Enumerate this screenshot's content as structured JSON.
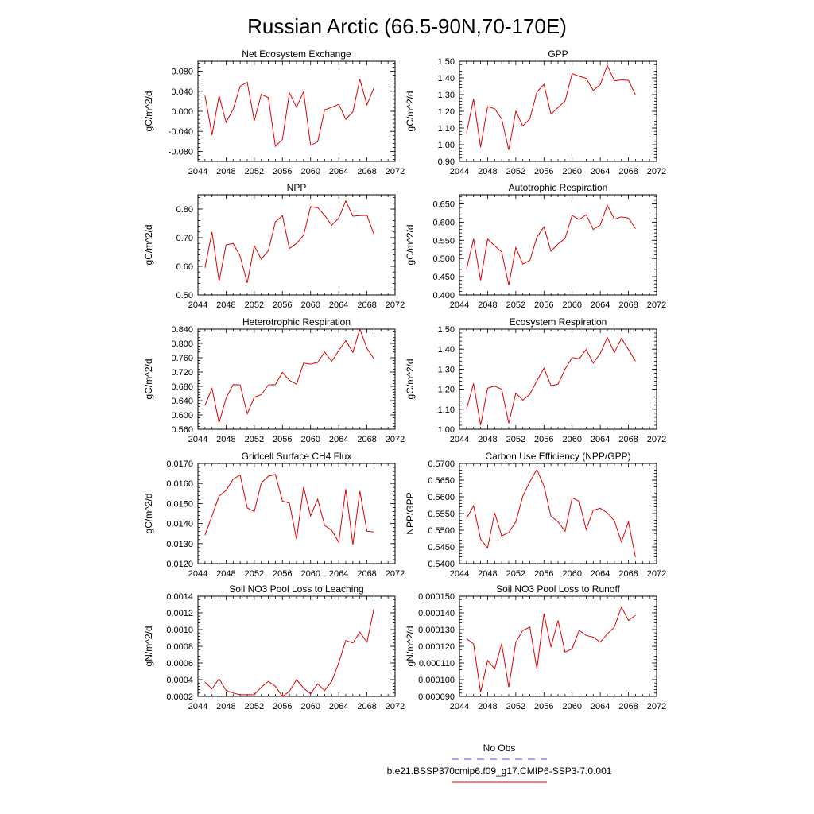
{
  "figure": {
    "title": "Russian Arctic (66.5-90N,70-170E)"
  },
  "legend": {
    "obs_label": "No Obs",
    "obs_color": "#4a4aff",
    "model_label": "b.e21.BSSP370cmip6.f09_g17.CMIP6-SSP3-7.0.001",
    "model_color": "#e00000"
  },
  "chart_data": [
    {
      "type": "line",
      "title": "Net Ecosystem Exchange",
      "ylabel": "gC/m^2/d",
      "xlim": [
        2044,
        2072
      ],
      "xticks": [
        "2044",
        "2048",
        "2052",
        "2056",
        "2060",
        "2064",
        "2068",
        "2072"
      ],
      "ylim": [
        -0.1,
        0.1
      ],
      "yticks": [
        "-0.080",
        "-0.040",
        "0.000",
        "0.040",
        "0.080"
      ],
      "series": [
        {
          "x": [
            2045,
            2046,
            2047,
            2048,
            2049,
            2050,
            2051,
            2052,
            2053,
            2054,
            2055,
            2056,
            2057,
            2058,
            2059,
            2060,
            2061,
            2062,
            2063,
            2064,
            2065,
            2066,
            2067,
            2068,
            2069
          ],
          "values": [
            0.031,
            -0.047,
            0.031,
            -0.022,
            0.004,
            0.05,
            0.058,
            -0.019,
            0.034,
            0.027,
            -0.07,
            -0.056,
            0.037,
            0.008,
            0.039,
            -0.068,
            -0.061,
            0.003,
            0.008,
            0.014,
            -0.016,
            -0.001,
            0.064,
            0.013,
            0.047
          ]
        }
      ]
    },
    {
      "type": "line",
      "title": "GPP",
      "ylabel": "gC/m^2/d",
      "xlim": [
        2044,
        2072
      ],
      "xticks": [
        "2044",
        "2048",
        "2052",
        "2056",
        "2060",
        "2064",
        "2068",
        "2072"
      ],
      "ylim": [
        0.9,
        1.5
      ],
      "yticks": [
        "0.90",
        "1.00",
        "1.10",
        "1.20",
        "1.30",
        "1.40",
        "1.50"
      ],
      "series": [
        {
          "x": [
            2045,
            2046,
            2047,
            2048,
            2049,
            2050,
            2051,
            2052,
            2053,
            2054,
            2055,
            2056,
            2057,
            2058,
            2059,
            2060,
            2061,
            2062,
            2063,
            2064,
            2065,
            2066,
            2067,
            2068,
            2069
          ],
          "values": [
            1.07,
            1.275,
            0.985,
            1.228,
            1.215,
            1.155,
            0.968,
            1.2,
            1.112,
            1.155,
            1.315,
            1.362,
            1.183,
            1.223,
            1.262,
            1.425,
            1.41,
            1.397,
            1.325,
            1.36,
            1.475,
            1.382,
            1.388,
            1.385,
            1.298
          ]
        }
      ]
    },
    {
      "type": "line",
      "title": "NPP",
      "ylabel": "gC/m^2/d",
      "xlim": [
        2044,
        2072
      ],
      "xticks": [
        "2044",
        "2048",
        "2052",
        "2056",
        "2060",
        "2064",
        "2068",
        "2072"
      ],
      "ylim": [
        0.5,
        0.85
      ],
      "yticks": [
        "0.50",
        "0.60",
        "0.70",
        "0.80"
      ],
      "series": [
        {
          "x": [
            2045,
            2046,
            2047,
            2048,
            2049,
            2050,
            2051,
            2052,
            2053,
            2054,
            2055,
            2056,
            2057,
            2058,
            2059,
            2060,
            2061,
            2062,
            2063,
            2064,
            2065,
            2066,
            2067,
            2068,
            2069
          ],
          "values": [
            0.595,
            0.72,
            0.547,
            0.675,
            0.68,
            0.635,
            0.542,
            0.672,
            0.625,
            0.655,
            0.755,
            0.777,
            0.662,
            0.68,
            0.708,
            0.808,
            0.805,
            0.778,
            0.744,
            0.768,
            0.828,
            0.775,
            0.777,
            0.778,
            0.712
          ]
        }
      ]
    },
    {
      "type": "line",
      "title": "Autotrophic Respiration",
      "ylabel": "gC/m^2/d",
      "xlim": [
        2044,
        2072
      ],
      "xticks": [
        "2044",
        "2048",
        "2052",
        "2056",
        "2060",
        "2064",
        "2068",
        "2072"
      ],
      "ylim": [
        0.4,
        0.675
      ],
      "yticks": [
        "0.400",
        "0.450",
        "0.500",
        "0.550",
        "0.600",
        "0.650"
      ],
      "series": [
        {
          "x": [
            2045,
            2046,
            2047,
            2048,
            2049,
            2050,
            2051,
            2052,
            2053,
            2054,
            2055,
            2056,
            2057,
            2058,
            2059,
            2060,
            2061,
            2062,
            2063,
            2064,
            2065,
            2066,
            2067,
            2068,
            2069
          ],
          "values": [
            0.47,
            0.554,
            0.44,
            0.553,
            0.535,
            0.518,
            0.427,
            0.53,
            0.485,
            0.495,
            0.558,
            0.587,
            0.52,
            0.54,
            0.555,
            0.618,
            0.607,
            0.62,
            0.58,
            0.592,
            0.646,
            0.608,
            0.614,
            0.611,
            0.582
          ]
        }
      ]
    },
    {
      "type": "line",
      "title": "Heterotrophic Respiration",
      "ylabel": "gC/m^2/d",
      "xlim": [
        2044,
        2072
      ],
      "xticks": [
        "2044",
        "2048",
        "2052",
        "2056",
        "2060",
        "2064",
        "2068",
        "2072"
      ],
      "ylim": [
        0.56,
        0.84
      ],
      "yticks": [
        "0.560",
        "0.600",
        "0.640",
        "0.680",
        "0.720",
        "0.760",
        "0.800",
        "0.840"
      ],
      "series": [
        {
          "x": [
            2045,
            2046,
            2047,
            2048,
            2049,
            2050,
            2051,
            2052,
            2053,
            2054,
            2055,
            2056,
            2057,
            2058,
            2059,
            2060,
            2061,
            2062,
            2063,
            2064,
            2065,
            2066,
            2067,
            2068,
            2069
          ],
          "values": [
            0.627,
            0.674,
            0.578,
            0.647,
            0.685,
            0.684,
            0.603,
            0.649,
            0.657,
            0.684,
            0.685,
            0.719,
            0.697,
            0.686,
            0.745,
            0.742,
            0.747,
            0.776,
            0.75,
            0.78,
            0.808,
            0.775,
            0.84,
            0.786,
            0.757
          ]
        }
      ]
    },
    {
      "type": "line",
      "title": "Ecosystem Respiration",
      "ylabel": "gC/m^2/d",
      "xlim": [
        2044,
        2072
      ],
      "xticks": [
        "2044",
        "2048",
        "2052",
        "2056",
        "2060",
        "2064",
        "2068",
        "2072"
      ],
      "ylim": [
        1.0,
        1.5
      ],
      "yticks": [
        "1.00",
        "1.10",
        "1.20",
        "1.30",
        "1.40",
        "1.50"
      ],
      "series": [
        {
          "x": [
            2045,
            2046,
            2047,
            2048,
            2049,
            2050,
            2051,
            2052,
            2053,
            2054,
            2055,
            2056,
            2057,
            2058,
            2059,
            2060,
            2061,
            2062,
            2063,
            2064,
            2065,
            2066,
            2067,
            2068,
            2069
          ],
          "values": [
            1.1,
            1.228,
            1.02,
            1.205,
            1.215,
            1.2,
            1.03,
            1.18,
            1.145,
            1.175,
            1.242,
            1.305,
            1.218,
            1.225,
            1.3,
            1.358,
            1.352,
            1.398,
            1.33,
            1.378,
            1.458,
            1.383,
            1.453,
            1.398,
            1.34
          ]
        }
      ]
    },
    {
      "type": "line",
      "title": "Gridcell Surface CH4 Flux",
      "ylabel": "gC/m^2/d",
      "xlim": [
        2044,
        2072
      ],
      "xticks": [
        "2044",
        "2048",
        "2052",
        "2056",
        "2060",
        "2064",
        "2068",
        "2072"
      ],
      "ylim": [
        0.012,
        0.017
      ],
      "yticks": [
        "0.0120",
        "0.0130",
        "0.0140",
        "0.0150",
        "0.0160",
        "0.0170"
      ],
      "series": [
        {
          "x": [
            2045,
            2046,
            2047,
            2048,
            2049,
            2050,
            2051,
            2052,
            2053,
            2054,
            2055,
            2056,
            2057,
            2058,
            2059,
            2060,
            2061,
            2062,
            2063,
            2064,
            2065,
            2066,
            2067,
            2068,
            2069
          ],
          "values": [
            0.01342,
            0.01438,
            0.01537,
            0.01565,
            0.01622,
            0.01642,
            0.01478,
            0.0146,
            0.01603,
            0.01636,
            0.01645,
            0.01512,
            0.01502,
            0.01322,
            0.01582,
            0.01438,
            0.01522,
            0.0139,
            0.01366,
            0.01307,
            0.01572,
            0.01295,
            0.01562,
            0.01362,
            0.01358
          ]
        }
      ]
    },
    {
      "type": "line",
      "title": "Carbon Use Efficiency (NPP/GPP)",
      "ylabel": "NPP/GPP",
      "xlim": [
        2044,
        2072
      ],
      "xticks": [
        "2044",
        "2048",
        "2052",
        "2056",
        "2060",
        "2064",
        "2068",
        "2072"
      ],
      "ylim": [
        0.54,
        0.57
      ],
      "yticks": [
        "0.5400",
        "0.5450",
        "0.5500",
        "0.5550",
        "0.5600",
        "0.5650",
        "0.5700"
      ],
      "series": [
        {
          "x": [
            2045,
            2046,
            2047,
            2048,
            2049,
            2050,
            2051,
            2052,
            2053,
            2054,
            2055,
            2056,
            2057,
            2058,
            2059,
            2060,
            2061,
            2062,
            2063,
            2064,
            2065,
            2066,
            2067,
            2068,
            2069
          ],
          "values": [
            0.5535,
            0.5573,
            0.5473,
            0.5447,
            0.5552,
            0.5483,
            0.5493,
            0.5525,
            0.5602,
            0.5646,
            0.5682,
            0.5632,
            0.5542,
            0.5525,
            0.5497,
            0.5597,
            0.5587,
            0.5502,
            0.556,
            0.5566,
            0.5552,
            0.5528,
            0.5465,
            0.5525,
            0.5419
          ]
        }
      ]
    },
    {
      "type": "line",
      "title": "Soil NO3 Pool Loss to Leaching",
      "ylabel": "gN/m^2/d",
      "xlim": [
        2044,
        2072
      ],
      "xticks": [
        "2044",
        "2048",
        "2052",
        "2056",
        "2060",
        "2064",
        "2068",
        "2072"
      ],
      "ylim": [
        0.0002,
        0.0014
      ],
      "yticks": [
        "0.0002",
        "0.0004",
        "0.0006",
        "0.0008",
        "0.0010",
        "0.0012",
        "0.0014"
      ],
      "series": [
        {
          "x": [
            2045,
            2046,
            2047,
            2048,
            2049,
            2050,
            2051,
            2052,
            2053,
            2054,
            2055,
            2056,
            2057,
            2058,
            2059,
            2060,
            2061,
            2062,
            2063,
            2064,
            2065,
            2066,
            2067,
            2068,
            2069
          ],
          "values": [
            0.00037,
            0.00029,
            0.00041,
            0.00027,
            0.00024,
            0.00022,
            0.00022,
            0.00022,
            0.00031,
            0.00038,
            0.00032,
            0.0002,
            0.00026,
            0.0004,
            0.0003,
            0.00023,
            0.00035,
            0.00027,
            0.00038,
            0.0006,
            0.00087,
            0.00084,
            0.00097,
            0.00085,
            0.00125
          ]
        }
      ]
    },
    {
      "type": "line",
      "title": "Soil NO3 Pool Loss to Runoff",
      "ylabel": "gN/m^2/d",
      "xlim": [
        2044,
        2072
      ],
      "xticks": [
        "2044",
        "2048",
        "2052",
        "2056",
        "2060",
        "2064",
        "2068",
        "2072"
      ],
      "ylim": [
        9e-05,
        0.00015
      ],
      "yticks": [
        "0.000090",
        "0.000100",
        "0.000110",
        "0.000120",
        "0.000130",
        "0.000140",
        "0.000150"
      ],
      "series": [
        {
          "x": [
            2045,
            2046,
            2047,
            2048,
            2049,
            2050,
            2051,
            2052,
            2053,
            2054,
            2055,
            2056,
            2057,
            2058,
            2059,
            2060,
            2061,
            2062,
            2063,
            2064,
            2065,
            2066,
            2067,
            2068,
            2069
          ],
          "values": [
            0.0001245,
            0.0001215,
            9.25e-05,
            0.0001115,
            0.0001065,
            0.0001215,
            9.55e-05,
            0.0001225,
            0.0001295,
            0.0001315,
            0.0001065,
            0.0001395,
            0.0001195,
            0.0001355,
            0.0001165,
            0.0001185,
            0.0001295,
            0.0001265,
            0.0001255,
            0.0001225,
            0.0001275,
            0.0001315,
            0.0001435,
            0.0001355,
            0.0001385
          ]
        }
      ]
    }
  ]
}
